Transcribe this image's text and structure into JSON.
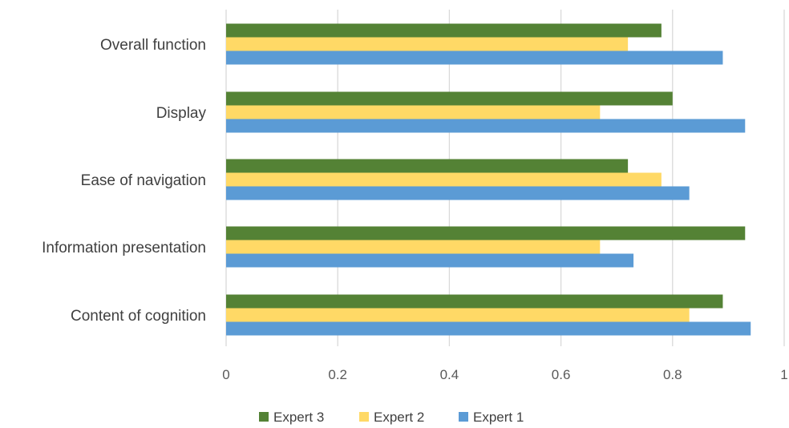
{
  "chart_data": {
    "type": "bar",
    "orientation": "horizontal",
    "title": "",
    "xlabel": "",
    "ylabel": "",
    "categories": [
      "Overall function",
      "Display",
      "Ease of navigation",
      "Information presentation",
      "Content of cognition"
    ],
    "series": [
      {
        "name": "Expert 3",
        "color": "#548235",
        "values": [
          0.78,
          0.8,
          0.72,
          0.93,
          0.89
        ]
      },
      {
        "name": "Expert 2",
        "color": "#FFD966",
        "values": [
          0.72,
          0.67,
          0.78,
          0.67,
          0.83
        ]
      },
      {
        "name": "Expert 1",
        "color": "#5B9BD5",
        "values": [
          0.89,
          0.93,
          0.83,
          0.73,
          0.94
        ]
      }
    ],
    "xlim": [
      0,
      1
    ],
    "xticks": [
      "0",
      "0.2",
      "0.4",
      "0.6",
      "0.8",
      "1"
    ],
    "grid": true,
    "legend_position": "bottom"
  }
}
